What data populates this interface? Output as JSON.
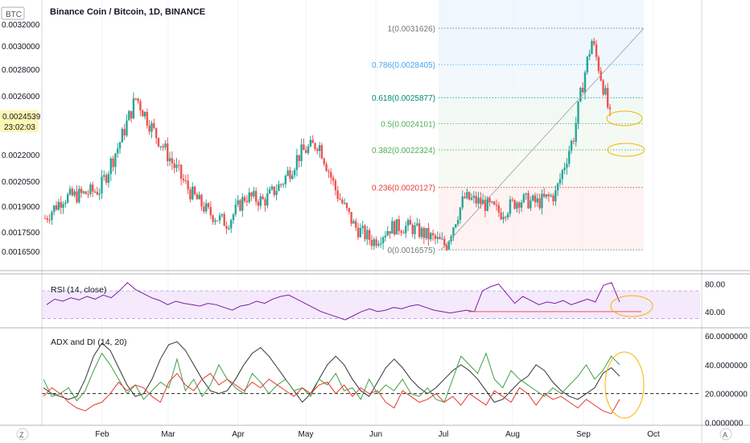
{
  "header": {
    "title": "Binance Coin / Bitcoin, 1D, BINANCE",
    "currency": "BTC",
    "last_price": "0.0024539",
    "countdown": "23:02:03",
    "corner_left": "Z",
    "corner_right": "A"
  },
  "colors": {
    "up": "#26a69a",
    "down": "#ef5350",
    "rsi": "#7b1fa2",
    "adx": "#333333",
    "di_plus": "#43a047",
    "di_minus": "#e53935",
    "highlight": "#f2b600"
  },
  "chart_data": [
    {
      "type": "candlestick",
      "title": "Binance Coin / Bitcoin, 1D, BINANCE",
      "ylim": [
        0.00158,
        0.0034
      ],
      "y_ticks": [
        "0.0032000",
        "0.0030000",
        "0.0028000",
        "0.0026000",
        "0.0022000",
        "0.0020500",
        "0.0019000",
        "0.0017500",
        "0.0016500"
      ],
      "x_ticks": [
        "Feb",
        "Mar",
        "Apr",
        "May",
        "Jun",
        "Jul",
        "Aug",
        "Sep",
        "Oct"
      ],
      "close_trend": [
        [
          "Jan",
          0.00183
        ],
        [
          "Jan",
          0.00195
        ],
        [
          "Jan",
          0.00197
        ],
        [
          "Feb",
          0.002
        ],
        [
          "Feb",
          0.00225
        ],
        [
          "Feb",
          0.00259
        ],
        [
          "Feb",
          0.00235
        ],
        [
          "Mar",
          0.00215
        ],
        [
          "Mar",
          0.00198
        ],
        [
          "Mar",
          0.00186
        ],
        [
          "Mar",
          0.0018
        ],
        [
          "Apr",
          0.00196
        ],
        [
          "Apr",
          0.00193
        ],
        [
          "Apr",
          0.00204
        ],
        [
          "Apr",
          0.00221
        ],
        [
          "May",
          0.00228
        ],
        [
          "May",
          0.00198
        ],
        [
          "May",
          0.00178
        ],
        [
          "May",
          0.0017
        ],
        [
          "Jun",
          0.00178
        ],
        [
          "Jun",
          0.00178
        ],
        [
          "Jun",
          0.00173
        ],
        [
          "Jul",
          0.00168
        ],
        [
          "Jul",
          0.00195
        ],
        [
          "Jul",
          0.00192
        ],
        [
          "Aug",
          0.00186
        ],
        [
          "Aug",
          0.00194
        ],
        [
          "Aug",
          0.00192
        ],
        [
          "Aug",
          0.00197
        ],
        [
          "Sep",
          0.00232
        ],
        [
          "Sep",
          0.00305
        ],
        [
          "Sep",
          0.00245
        ]
      ],
      "fibonacci": [
        {
          "ratio": "1",
          "price": 0.0031626,
          "label": "1(0.0031626)",
          "color": "#777777"
        },
        {
          "ratio": "0.786",
          "price": 0.0028405,
          "label": "0.786(0.0028405)",
          "color": "#42a5f5"
        },
        {
          "ratio": "0.618",
          "price": 0.0025877,
          "label": "0.618(0.0025877)",
          "color": "#00897b"
        },
        {
          "ratio": "0.5",
          "price": 0.0024101,
          "label": "0.5(0.0024101)",
          "color": "#4caf50"
        },
        {
          "ratio": "0.382",
          "price": 0.0022324,
          "label": "0.382(0.0022324)",
          "color": "#4caf50"
        },
        {
          "ratio": "0.236",
          "price": 0.0020127,
          "label": "0.236(0.0020127)",
          "color": "#e53935"
        },
        {
          "ratio": "0",
          "price": 0.0016575,
          "label": "0(0.0016575)",
          "color": "#777777"
        }
      ]
    },
    {
      "type": "line",
      "title": "RSI (14, close)",
      "ylim": [
        20,
        90
      ],
      "y_ticks": [
        "80.00",
        "40.00"
      ],
      "band": [
        30,
        70
      ],
      "series": [
        {
          "name": "RSI",
          "values": [
            50,
            58,
            55,
            60,
            57,
            62,
            58,
            64,
            60,
            70,
            82,
            72,
            66,
            60,
            56,
            50,
            55,
            52,
            50,
            48,
            52,
            50,
            46,
            42,
            48,
            50,
            55,
            52,
            58,
            62,
            64,
            58,
            52,
            46,
            40,
            36,
            32,
            28,
            34,
            40,
            44,
            40,
            42,
            46,
            44,
            48,
            50,
            46,
            42,
            40,
            38,
            40,
            42,
            40,
            70,
            76,
            80,
            66,
            52,
            62,
            56,
            50,
            54,
            52,
            56,
            50,
            54,
            58,
            54,
            78,
            82,
            54
          ]
        }
      ]
    },
    {
      "type": "line",
      "title": "ADX and DI (14, 20)",
      "ylim": [
        -2,
        64
      ],
      "y_ticks": [
        "60.0000000",
        "40.0000000",
        "20.0000000",
        "0.0000000"
      ],
      "reference_level": 20,
      "series": [
        {
          "name": "ADX",
          "values": [
            24,
            20,
            18,
            16,
            18,
            30,
            46,
            55,
            50,
            38,
            26,
            18,
            20,
            30,
            44,
            54,
            56,
            50,
            40,
            30,
            22,
            20,
            22,
            30,
            40,
            48,
            52,
            46,
            38,
            30,
            22,
            14,
            20,
            30,
            40,
            46,
            40,
            30,
            22,
            18,
            28,
            38,
            44,
            38,
            30,
            24,
            20,
            24,
            30,
            36,
            40,
            36,
            30,
            22,
            14,
            16,
            22,
            28,
            32,
            40,
            36,
            28,
            22,
            18,
            16,
            20,
            24,
            34,
            38,
            32
          ]
        },
        {
          "name": "DI+",
          "values": [
            30,
            18,
            20,
            24,
            15,
            22,
            36,
            48,
            40,
            30,
            20,
            26,
            16,
            22,
            28,
            24,
            44,
            22,
            30,
            18,
            26,
            40,
            30,
            24,
            20,
            34,
            28,
            20,
            26,
            30,
            22,
            24,
            18,
            30,
            26,
            34,
            22,
            24,
            16,
            30,
            20,
            26,
            22,
            30,
            20,
            18,
            24,
            16,
            14,
            30,
            46,
            40,
            34,
            48,
            30,
            24,
            36,
            30,
            26,
            22,
            18,
            24,
            20,
            26,
            32,
            40,
            30,
            36,
            46,
            40
          ]
        },
        {
          "name": "DI-",
          "values": [
            18,
            24,
            20,
            14,
            10,
            8,
            12,
            14,
            20,
            28,
            22,
            26,
            24,
            18,
            14,
            28,
            34,
            26,
            22,
            30,
            34,
            26,
            30,
            26,
            22,
            28,
            24,
            30,
            26,
            22,
            18,
            24,
            20,
            26,
            28,
            20,
            26,
            18,
            24,
            20,
            22,
            14,
            10,
            22,
            18,
            14,
            16,
            20,
            14,
            18,
            12,
            20,
            16,
            12,
            22,
            18,
            14,
            24,
            20,
            12,
            20,
            16,
            18,
            14,
            10,
            16,
            12,
            8,
            6,
            16
          ]
        }
      ]
    }
  ]
}
